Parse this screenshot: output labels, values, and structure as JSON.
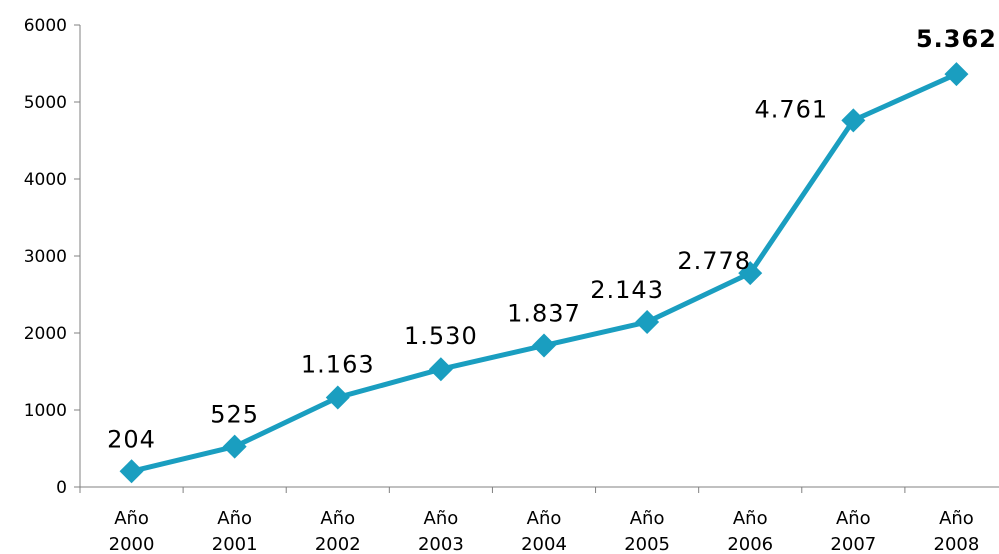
{
  "chart_data": {
    "type": "line",
    "categories": [
      [
        "Año",
        "2000"
      ],
      [
        "Año",
        "2001"
      ],
      [
        "Año",
        "2002"
      ],
      [
        "Año",
        "2003"
      ],
      [
        "Año",
        "2004"
      ],
      [
        "Año",
        "2005"
      ],
      [
        "Año",
        "2006"
      ],
      [
        "Año",
        "2007"
      ],
      [
        "Año",
        "2008"
      ]
    ],
    "values": [
      204,
      525,
      1163,
      1530,
      1837,
      2143,
      2778,
      4761,
      5362
    ],
    "data_labels": [
      "204",
      "525",
      "1.163",
      "1.530",
      "1.837",
      "2.143",
      "2.778",
      "4.761",
      "5.362"
    ],
    "bold_labels": [
      false,
      false,
      false,
      false,
      false,
      false,
      false,
      false,
      true
    ],
    "yticks": [
      0,
      1000,
      2000,
      3000,
      4000,
      5000,
      6000
    ],
    "ylim": [
      0,
      6000
    ],
    "title": "",
    "xlabel": "",
    "ylabel": "",
    "grid": false,
    "legend": "none",
    "line_color": "#1a9ec0",
    "marker": "diamond"
  }
}
